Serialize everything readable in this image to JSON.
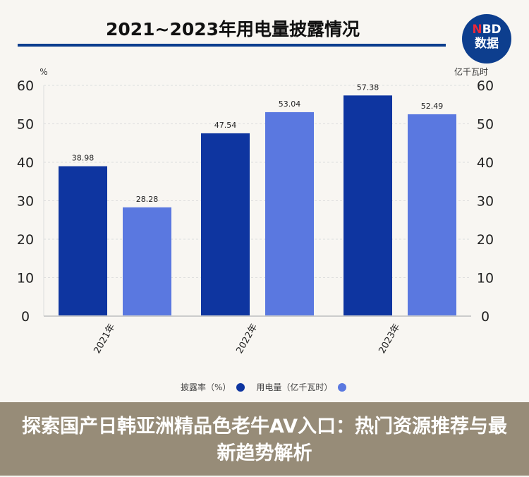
{
  "chart_data": {
    "type": "bar",
    "title": "2021~2023年用电量披露情况",
    "categories": [
      "2021年",
      "2022年",
      "2023年"
    ],
    "series": [
      {
        "name": "披露率（%）",
        "values": [
          38.98,
          47.54,
          57.38
        ],
        "color": "#0e35a0",
        "axis": "left"
      },
      {
        "name": "用电量（亿千瓦时）",
        "values": [
          28.28,
          53.04,
          52.49
        ],
        "color": "#5a78e0",
        "axis": "right"
      }
    ],
    "ylabel_left": "%",
    "ylabel_right": "亿千瓦时",
    "ylim": [
      0,
      60
    ],
    "yticks": [
      0,
      10,
      20,
      30,
      40,
      50,
      60
    ],
    "grid": true,
    "legend_position": "bottom"
  },
  "logo": {
    "line1_accent": "N",
    "line1_rest": "BD",
    "line2": "数据"
  },
  "overlay": {
    "text": "探索国产日韩亚洲精品色老牛AV入口：热门资源推荐与最新趋势解析",
    "color": "#695a3e"
  }
}
